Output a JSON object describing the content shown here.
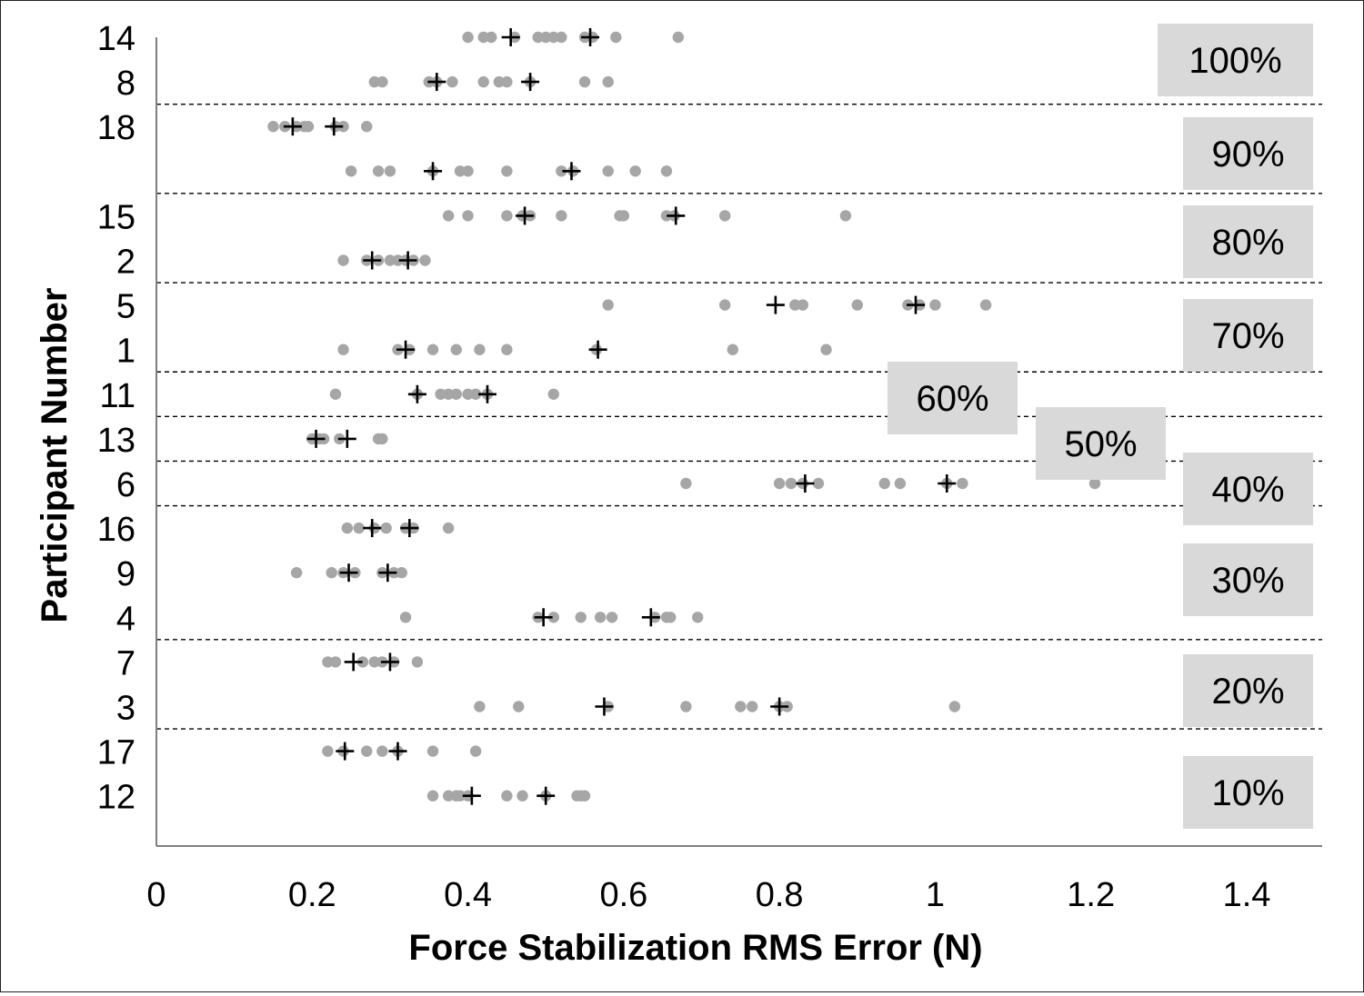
{
  "chart_data": {
    "type": "scatter",
    "title": "",
    "xlabel": "Force Stabilization RMS Error (N)",
    "ylabel": "Participant Number",
    "xlim": [
      0,
      1.5
    ],
    "x_ticks": [
      "0",
      "0.2",
      "0.4",
      "0.6",
      "0.8",
      "1",
      "1.2",
      "1.4"
    ],
    "grid": false,
    "colors": {
      "trial_point": "#a6a6a6",
      "mean_marker": "#000000",
      "group_box": "#d9d9d9"
    },
    "row_order": [
      "14",
      "8",
      "18",
      "",
      "15",
      "2",
      "5",
      "1",
      "11",
      "13",
      "6",
      "16",
      "9",
      "4",
      "7",
      "3",
      "17",
      "12"
    ],
    "groups": [
      {
        "label": "100%",
        "rows": [
          "14",
          "8"
        ]
      },
      {
        "label": "90%",
        "rows": [
          "18",
          ""
        ]
      },
      {
        "label": "80%",
        "rows": [
          "15",
          "2"
        ]
      },
      {
        "label": "70%",
        "rows": [
          "5",
          "1"
        ]
      },
      {
        "label": "60%",
        "rows": [
          "11"
        ]
      },
      {
        "label": "50%",
        "rows": [
          "13"
        ]
      },
      {
        "label": "40%",
        "rows": [
          "6"
        ]
      },
      {
        "label": "30%",
        "rows": [
          "16",
          "9",
          "4"
        ]
      },
      {
        "label": "20%",
        "rows": [
          "7",
          "3"
        ]
      },
      {
        "label": "10%",
        "rows": [
          "17",
          "12"
        ]
      }
    ],
    "participants": [
      {
        "id": "14",
        "points": [
          0.4,
          0.42,
          0.43,
          0.46,
          0.49,
          0.5,
          0.51,
          0.52,
          0.55,
          0.56,
          0.59,
          0.67
        ],
        "means": [
          0.455,
          0.557
        ]
      },
      {
        "id": "8",
        "points": [
          0.28,
          0.29,
          0.35,
          0.36,
          0.38,
          0.42,
          0.44,
          0.45,
          0.48,
          0.55,
          0.58
        ],
        "means": [
          0.36,
          0.48
        ]
      },
      {
        "id": "18",
        "points": [
          0.15,
          0.165,
          0.18,
          0.19,
          0.195,
          0.23,
          0.24,
          0.27
        ],
        "means": [
          0.175,
          0.228
        ]
      },
      {
        "id": "",
        "points": [
          0.25,
          0.285,
          0.3,
          0.355,
          0.39,
          0.4,
          0.45,
          0.52,
          0.535,
          0.58,
          0.615,
          0.655
        ],
        "means": [
          0.355,
          0.533
        ]
      },
      {
        "id": "15",
        "points": [
          0.375,
          0.4,
          0.45,
          0.47,
          0.48,
          0.52,
          0.595,
          0.6,
          0.655,
          0.665,
          0.73,
          0.885
        ],
        "means": [
          0.473,
          0.667
        ]
      },
      {
        "id": "2",
        "points": [
          0.24,
          0.27,
          0.285,
          0.3,
          0.31,
          0.32,
          0.33,
          0.345
        ],
        "means": [
          0.277,
          0.323
        ]
      },
      {
        "id": "5",
        "points": [
          0.58,
          0.73,
          0.82,
          0.83,
          0.9,
          0.965,
          0.98,
          1.0,
          1.065
        ],
        "means": [
          0.795,
          0.975
        ]
      },
      {
        "id": "1",
        "points": [
          0.24,
          0.31,
          0.325,
          0.355,
          0.385,
          0.415,
          0.45,
          0.565,
          0.74,
          0.86
        ],
        "means": [
          0.32,
          0.567
        ]
      },
      {
        "id": "11",
        "points": [
          0.23,
          0.335,
          0.365,
          0.375,
          0.385,
          0.4,
          0.41,
          0.425,
          0.51
        ],
        "means": [
          0.335,
          0.425
        ]
      },
      {
        "id": "13",
        "points": [
          0.2,
          0.21,
          0.215,
          0.235,
          0.285,
          0.29
        ],
        "means": [
          0.205,
          0.245
        ]
      },
      {
        "id": "6",
        "points": [
          0.68,
          0.8,
          0.815,
          0.83,
          0.85,
          0.935,
          0.955,
          1.015,
          1.035,
          1.205
        ],
        "means": [
          0.833,
          1.015
        ]
      },
      {
        "id": "16",
        "points": [
          0.245,
          0.26,
          0.28,
          0.295,
          0.32,
          0.33,
          0.375
        ],
        "means": [
          0.277,
          0.325
        ]
      },
      {
        "id": "9",
        "points": [
          0.18,
          0.225,
          0.24,
          0.255,
          0.29,
          0.305,
          0.315
        ],
        "means": [
          0.247,
          0.297
        ]
      },
      {
        "id": "4",
        "points": [
          0.32,
          0.49,
          0.51,
          0.545,
          0.57,
          0.585,
          0.64,
          0.655,
          0.66,
          0.695
        ],
        "means": [
          0.497,
          0.635
        ]
      },
      {
        "id": "7",
        "points": [
          0.22,
          0.23,
          0.265,
          0.28,
          0.29,
          0.305,
          0.335
        ],
        "means": [
          0.253,
          0.3
        ]
      },
      {
        "id": "3",
        "points": [
          0.415,
          0.465,
          0.58,
          0.68,
          0.75,
          0.765,
          0.8,
          0.81,
          1.025
        ],
        "means": [
          0.575,
          0.8
        ]
      },
      {
        "id": "17",
        "points": [
          0.22,
          0.24,
          0.27,
          0.29,
          0.31,
          0.355,
          0.41
        ],
        "means": [
          0.242,
          0.31
        ]
      },
      {
        "id": "12",
        "points": [
          0.355,
          0.375,
          0.385,
          0.39,
          0.4,
          0.45,
          0.47,
          0.5,
          0.54,
          0.545,
          0.55
        ],
        "means": [
          0.405,
          0.5
        ]
      }
    ]
  }
}
